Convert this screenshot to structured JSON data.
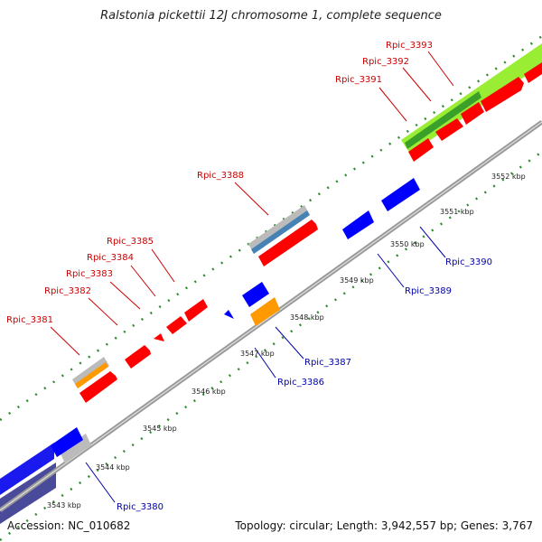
{
  "title": "Ralstonia pickettii 12J chromosome 1, complete sequence",
  "accession": "Accession: NC_010682",
  "summary": "Topology: circular; Length: 3,942,557 bp; Genes: 3,767",
  "colors": {
    "forward_cds": "#ff0000",
    "reverse_cds": "#0000ff",
    "orange": "#ff9900",
    "gray": "#bbbbbb",
    "backbone": "#999999",
    "dots": "#2e8b2e",
    "red_label": "#cc0000",
    "blue_label": "#0000aa"
  },
  "ticks": [
    "3543 kbp",
    "3544 kbp",
    "3545 kbp",
    "3546 kbp",
    "3547 kbp",
    "3548 kbp",
    "3549 kbp",
    "3550 kbp",
    "3551 kbp",
    "3552 kbp"
  ],
  "forward_labels": [
    "Rpic_3381",
    "Rpic_3382",
    "Rpic_3383",
    "Rpic_3384",
    "Rpic_3385",
    "Rpic_3388",
    "Rpic_3391",
    "Rpic_3392",
    "Rpic_3393"
  ],
  "reverse_labels": [
    "Rpic_3380",
    "Rpic_3386",
    "Rpic_3387",
    "Rpic_3389",
    "Rpic_3390"
  ]
}
